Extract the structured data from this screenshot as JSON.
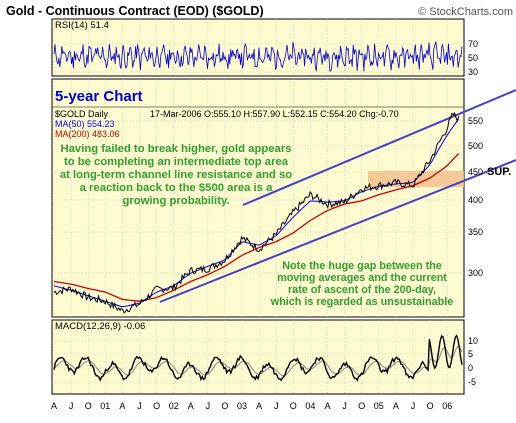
{
  "header": {
    "title": "Gold - Continuous Contract (EOD) ($GOLD)",
    "copyright": "© StockCharts.com"
  },
  "rsi": {
    "label": "RSI(14)",
    "value_text": "51.4",
    "ticks": [
      "70",
      "50",
      "30"
    ]
  },
  "main": {
    "chart_label": "5-year Chart",
    "ticker_label": "$GOLD Daily",
    "ohlc_line": "17-Mar-2006  O:555.10  H:557.90  L:552.15  C:554.20  Chg:-0.70",
    "ma50_label": "MA(50) 554.23",
    "ma200_label": "MA(200) 483.06",
    "annotation_top": [
      "Having failed to break higher, gold appears",
      "to be completing an intermediate top area",
      "at long-term channel line resistance and so",
      "a reaction back to the $500 area is a",
      "growing probability."
    ],
    "annotation_bottom": [
      "Note the huge gap between the",
      "moving averages and the current",
      "rate of ascent of the 200-day,",
      "which is regarded as unsustainable"
    ],
    "sup_label": "SUP.",
    "y_ticks": [
      "550",
      "500",
      "450",
      "400",
      "350",
      "300"
    ]
  },
  "macd": {
    "label": "MACD(12,26,9)",
    "value_text": "-0.06",
    "ticks": [
      "10",
      "5",
      "0",
      "-5"
    ]
  },
  "x_axis": {
    "ticks": [
      "A",
      "J",
      "O",
      "01",
      "A",
      "J",
      "O",
      "02",
      "A",
      "J",
      "O",
      "03",
      "A",
      "J",
      "O",
      "04",
      "A",
      "J",
      "O",
      "05",
      "A",
      "J",
      "O",
      "06"
    ]
  },
  "colors": {
    "plot_bg": "#fffbd0",
    "price": "#000000",
    "ma50": "#0000ff",
    "ma200": "#cc0000",
    "channel": "#4040c8",
    "annotation": "#2fa02f",
    "chart_label": "#0000cc",
    "sup_zone": "#f5c08c",
    "rsi_line": "#0000cc",
    "macd_line": "#000000",
    "macd_signal": "#888888"
  },
  "chart_data": [
    {
      "type": "line",
      "title": "Gold - Continuous Contract (EOD) ($GOLD)",
      "price_scale": "log",
      "ylim": [
        260,
        590
      ],
      "x_range": [
        "2000-04",
        "2006-03"
      ],
      "grid": true,
      "series": [
        {
          "name": "$GOLD Daily",
          "x": [
            "2000-04",
            "2000-07",
            "2000-10",
            "2001-01",
            "2001-04",
            "2001-07",
            "2001-10",
            "2002-01",
            "2002-04",
            "2002-07",
            "2002-10",
            "2003-01",
            "2003-04",
            "2003-07",
            "2003-10",
            "2004-01",
            "2004-04",
            "2004-07",
            "2004-10",
            "2005-01",
            "2005-04",
            "2005-07",
            "2005-10",
            "2006-01",
            "2006-02",
            "2006-03"
          ],
          "values": [
            278,
            282,
            272,
            268,
            258,
            265,
            281,
            283,
            303,
            305,
            316,
            345,
            330,
            350,
            382,
            410,
            395,
            398,
            420,
            425,
            430,
            425,
            470,
            535,
            565,
            554
          ]
        },
        {
          "name": "MA(50)",
          "x": [
            "2000-04",
            "2000-07",
            "2000-10",
            "2001-01",
            "2001-04",
            "2001-07",
            "2001-10",
            "2002-01",
            "2002-04",
            "2002-07",
            "2002-10",
            "2003-01",
            "2003-04",
            "2003-07",
            "2003-10",
            "2004-01",
            "2004-04",
            "2004-07",
            "2004-10",
            "2005-01",
            "2005-04",
            "2005-07",
            "2005-10",
            "2006-01",
            "2006-03"
          ],
          "values": [
            285,
            280,
            274,
            268,
            262,
            266,
            278,
            285,
            300,
            308,
            316,
            340,
            335,
            348,
            375,
            400,
            398,
            400,
            415,
            424,
            428,
            430,
            462,
            520,
            554.23
          ]
        },
        {
          "name": "MA(200)",
          "x": [
            "2000-04",
            "2000-07",
            "2000-10",
            "2001-01",
            "2001-04",
            "2001-07",
            "2001-10",
            "2002-01",
            "2002-04",
            "2002-07",
            "2002-10",
            "2003-01",
            "2003-04",
            "2003-07",
            "2003-10",
            "2004-01",
            "2004-04",
            "2004-07",
            "2004-10",
            "2005-01",
            "2005-04",
            "2005-07",
            "2005-10",
            "2006-01",
            "2006-03"
          ],
          "values": [
            290,
            287,
            282,
            278,
            270,
            268,
            272,
            280,
            290,
            298,
            308,
            322,
            332,
            340,
            352,
            370,
            385,
            395,
            400,
            410,
            418,
            425,
            438,
            460,
            483.06
          ]
        }
      ],
      "annotations": [
        "Having failed to break higher, gold appears to be completing an intermediate top area at long-term channel line resistance and so a reaction back to the $500 area is a growing probability.",
        "Note the huge gap between the moving averages and the current rate of ascent of the 200-day, which is regarded as unsustainable",
        "SUP."
      ]
    },
    {
      "type": "line",
      "title": "RSI(14)",
      "ylim": [
        20,
        85
      ],
      "series": [
        {
          "name": "RSI(14)",
          "latest": 51.4
        }
      ]
    },
    {
      "type": "line",
      "title": "MACD(12,26,9)",
      "ylim": [
        -7,
        13
      ],
      "series": [
        {
          "name": "MACD(12,26,9)",
          "latest": -0.06
        },
        {
          "name": "Signal",
          "latest": 0
        }
      ]
    }
  ]
}
